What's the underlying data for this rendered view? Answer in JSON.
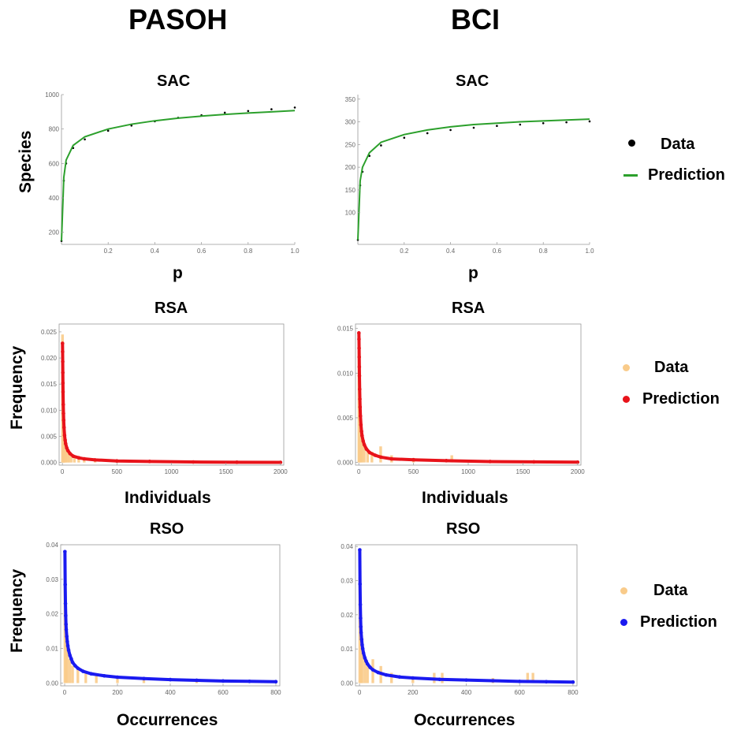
{
  "headers": {
    "left": "PASOH",
    "right": "BCI"
  },
  "row_labels": {
    "sac": {
      "title": "SAC",
      "xlabel": "p",
      "ylabel": "Species"
    },
    "rsa": {
      "title": "RSA",
      "xlabel": "Individuals",
      "ylabel": "Frequency"
    },
    "rso": {
      "title": "RSO",
      "xlabel": "Occurrences",
      "ylabel": "Frequency"
    }
  },
  "legends": {
    "sac": {
      "data": "Data",
      "prediction": "Prediction",
      "data_color": "#000000",
      "prediction_color": "#2ca02c"
    },
    "rsa": {
      "data": "Data",
      "prediction": "Prediction",
      "data_color": "#f9cb8a",
      "prediction_color": "#e8131a"
    },
    "rso": {
      "data": "Data",
      "prediction": "Prediction",
      "data_color": "#f9cb8a",
      "prediction_color": "#1a1af0"
    }
  },
  "chart_data": [
    {
      "id": "pasoh-sac",
      "type": "line",
      "title": "SAC",
      "xlabel": "p",
      "ylabel": "Species",
      "xlim": [
        0,
        1.0
      ],
      "ylim": [
        130,
        1000
      ],
      "xticks": [
        "0.2",
        "0.4",
        "0.6",
        "0.8",
        "1.0"
      ],
      "yticks": [
        "200",
        "400",
        "600",
        "800",
        "1000"
      ],
      "series": [
        {
          "name": "Data",
          "kind": "points",
          "x": [
            0.0,
            0.01,
            0.02,
            0.05,
            0.1,
            0.2,
            0.3,
            0.4,
            0.5,
            0.6,
            0.7,
            0.8,
            0.9,
            1.0
          ],
          "y": [
            150,
            500,
            600,
            690,
            740,
            790,
            820,
            845,
            865,
            880,
            895,
            905,
            915,
            925
          ]
        },
        {
          "name": "Prediction",
          "kind": "line",
          "x": [
            0.0,
            0.01,
            0.02,
            0.05,
            0.1,
            0.2,
            0.3,
            0.4,
            0.5,
            0.6,
            0.7,
            0.8,
            0.9,
            1.0
          ],
          "y": [
            150,
            520,
            620,
            705,
            755,
            800,
            828,
            848,
            863,
            875,
            885,
            893,
            900,
            907
          ]
        }
      ]
    },
    {
      "id": "bci-sac",
      "type": "line",
      "title": "SAC",
      "xlabel": "p",
      "ylabel": "",
      "xlim": [
        0,
        1.0
      ],
      "ylim": [
        30,
        360
      ],
      "xticks": [
        "0.2",
        "0.4",
        "0.6",
        "0.8",
        "1.0"
      ],
      "yticks": [
        "100",
        "150",
        "200",
        "250",
        "300",
        "350"
      ],
      "series": [
        {
          "name": "Data",
          "kind": "points",
          "x": [
            0.0,
            0.01,
            0.02,
            0.05,
            0.1,
            0.2,
            0.3,
            0.4,
            0.5,
            0.6,
            0.7,
            0.8,
            0.9,
            1.0
          ],
          "y": [
            40,
            160,
            190,
            225,
            248,
            265,
            275,
            282,
            287,
            291,
            294,
            297,
            299,
            301
          ]
        },
        {
          "name": "Prediction",
          "kind": "line",
          "x": [
            0.0,
            0.01,
            0.02,
            0.05,
            0.1,
            0.2,
            0.3,
            0.4,
            0.5,
            0.6,
            0.7,
            0.8,
            0.9,
            1.0
          ],
          "y": [
            40,
            170,
            200,
            232,
            255,
            272,
            282,
            289,
            294,
            297,
            300,
            302,
            304,
            306
          ]
        }
      ]
    },
    {
      "id": "pasoh-rsa",
      "type": "bar",
      "title": "RSA",
      "xlabel": "Individuals",
      "ylabel": "Frequency",
      "xlim": [
        -30,
        2030
      ],
      "ylim": [
        -0.0005,
        0.0265
      ],
      "xticks": [
        "0",
        "500",
        "1000",
        "1500",
        "2000"
      ],
      "yticks": [
        "0.000",
        "0.005",
        "0.010",
        "0.015",
        "0.020",
        "0.025"
      ],
      "series": [
        {
          "name": "Data",
          "kind": "bars",
          "x": [
            1,
            5,
            10,
            15,
            20,
            30,
            45,
            60,
            80,
            110,
            150,
            200,
            300,
            500
          ],
          "y": [
            0.0245,
            0.014,
            0.009,
            0.006,
            0.004,
            0.003,
            0.0025,
            0.002,
            0.0015,
            0.001,
            0.0008,
            0.0006,
            0.0004,
            0.0002
          ]
        },
        {
          "name": "Prediction",
          "kind": "points",
          "x": [
            1,
            2,
            3,
            4,
            5,
            6,
            8,
            10,
            12,
            15,
            20,
            25,
            30,
            40,
            50,
            70,
            100,
            150,
            200,
            300,
            500,
            800,
            1200,
            1600,
            2000
          ],
          "y": [
            0.0228,
            0.0212,
            0.0193,
            0.0172,
            0.0152,
            0.0135,
            0.0111,
            0.0094,
            0.0081,
            0.0067,
            0.0052,
            0.0043,
            0.0036,
            0.0028,
            0.0023,
            0.0017,
            0.0012,
            0.0009,
            0.0007,
            0.0005,
            0.0003,
            0.0002,
            0.0001,
            5e-05,
            2e-05
          ]
        }
      ]
    },
    {
      "id": "bci-rsa",
      "type": "bar",
      "title": "RSA",
      "xlabel": "Individuals",
      "ylabel": "",
      "xlim": [
        -30,
        2030
      ],
      "ylim": [
        -0.0003,
        0.0155
      ],
      "xticks": [
        "0",
        "500",
        "1000",
        "1500",
        "2000"
      ],
      "yticks": [
        "0.000",
        "0.005",
        "0.010",
        "0.015"
      ],
      "series": [
        {
          "name": "Data",
          "kind": "bars",
          "x": [
            1,
            5,
            10,
            20,
            30,
            50,
            80,
            120,
            200,
            300,
            500,
            850
          ],
          "y": [
            0.0125,
            0.007,
            0.005,
            0.0035,
            0.0028,
            0.002,
            0.0015,
            0.0012,
            0.0018,
            0.0008,
            0.0005,
            0.0008
          ]
        },
        {
          "name": "Prediction",
          "kind": "points",
          "x": [
            1,
            2,
            3,
            4,
            5,
            6,
            8,
            10,
            12,
            15,
            20,
            25,
            30,
            40,
            50,
            70,
            100,
            150,
            200,
            300,
            500,
            800,
            1200,
            1600,
            2000
          ],
          "y": [
            0.0145,
            0.0138,
            0.0128,
            0.0118,
            0.0107,
            0.0097,
            0.0082,
            0.0071,
            0.0062,
            0.0052,
            0.0042,
            0.0035,
            0.003,
            0.0024,
            0.002,
            0.0015,
            0.0011,
            0.0008,
            0.0006,
            0.0004,
            0.0003,
            0.0002,
            0.0001,
            6e-05,
            3e-05
          ]
        }
      ]
    },
    {
      "id": "pasoh-rso",
      "type": "bar",
      "title": "RSO",
      "xlabel": "Occurrences",
      "ylabel": "Frequency",
      "xlim": [
        -15,
        815
      ],
      "ylim": [
        -0.0008,
        0.04
      ],
      "xticks": [
        "0",
        "200",
        "400",
        "600",
        "800"
      ],
      "yticks": [
        "0.00",
        "0.01",
        "0.02",
        "0.03",
        "0.04"
      ],
      "series": [
        {
          "name": "Data",
          "kind": "bars",
          "x": [
            1,
            5,
            10,
            20,
            30,
            50,
            80,
            120,
            200,
            300,
            500,
            800
          ],
          "y": [
            0.037,
            0.02,
            0.012,
            0.007,
            0.005,
            0.004,
            0.003,
            0.0025,
            0.002,
            0.0015,
            0.001,
            0.0005
          ]
        },
        {
          "name": "Prediction",
          "kind": "points",
          "x": [
            1,
            2,
            3,
            4,
            5,
            6,
            8,
            10,
            12,
            15,
            20,
            25,
            30,
            40,
            50,
            70,
            100,
            150,
            200,
            300,
            400,
            500,
            600,
            700,
            800
          ],
          "y": [
            0.038,
            0.0285,
            0.023,
            0.0195,
            0.017,
            0.0155,
            0.0135,
            0.012,
            0.0108,
            0.0095,
            0.008,
            0.007,
            0.006,
            0.005,
            0.0043,
            0.0034,
            0.0027,
            0.0021,
            0.0017,
            0.0013,
            0.001,
            0.0008,
            0.0006,
            0.0005,
            0.0004
          ]
        }
      ]
    },
    {
      "id": "bci-rso",
      "type": "bar",
      "title": "RSO",
      "xlabel": "Occurrences",
      "ylabel": "",
      "xlim": [
        -15,
        815
      ],
      "ylim": [
        -0.0008,
        0.0405
      ],
      "xticks": [
        "0",
        "200",
        "400",
        "600",
        "800"
      ],
      "yticks": [
        "0.00",
        "0.01",
        "0.02",
        "0.03",
        "0.04"
      ],
      "series": [
        {
          "name": "Data",
          "kind": "bars",
          "x": [
            1,
            5,
            10,
            20,
            30,
            50,
            80,
            120,
            200,
            280,
            310,
            500,
            630,
            650
          ],
          "y": [
            0.031,
            0.02,
            0.013,
            0.008,
            0.005,
            0.007,
            0.005,
            0.003,
            0.002,
            0.003,
            0.003,
            0.0015,
            0.003,
            0.003
          ]
        },
        {
          "name": "Prediction",
          "kind": "points",
          "x": [
            1,
            2,
            3,
            4,
            5,
            6,
            8,
            10,
            12,
            15,
            20,
            25,
            30,
            40,
            50,
            70,
            100,
            150,
            200,
            300,
            400,
            500,
            600,
            700,
            800
          ],
          "y": [
            0.039,
            0.029,
            0.023,
            0.019,
            0.0165,
            0.0148,
            0.0128,
            0.0112,
            0.0101,
            0.0088,
            0.0074,
            0.0064,
            0.0056,
            0.0046,
            0.0039,
            0.0031,
            0.0024,
            0.0018,
            0.0015,
            0.0011,
            0.0009,
            0.0007,
            0.0005,
            0.0004,
            0.0003
          ]
        }
      ]
    }
  ]
}
